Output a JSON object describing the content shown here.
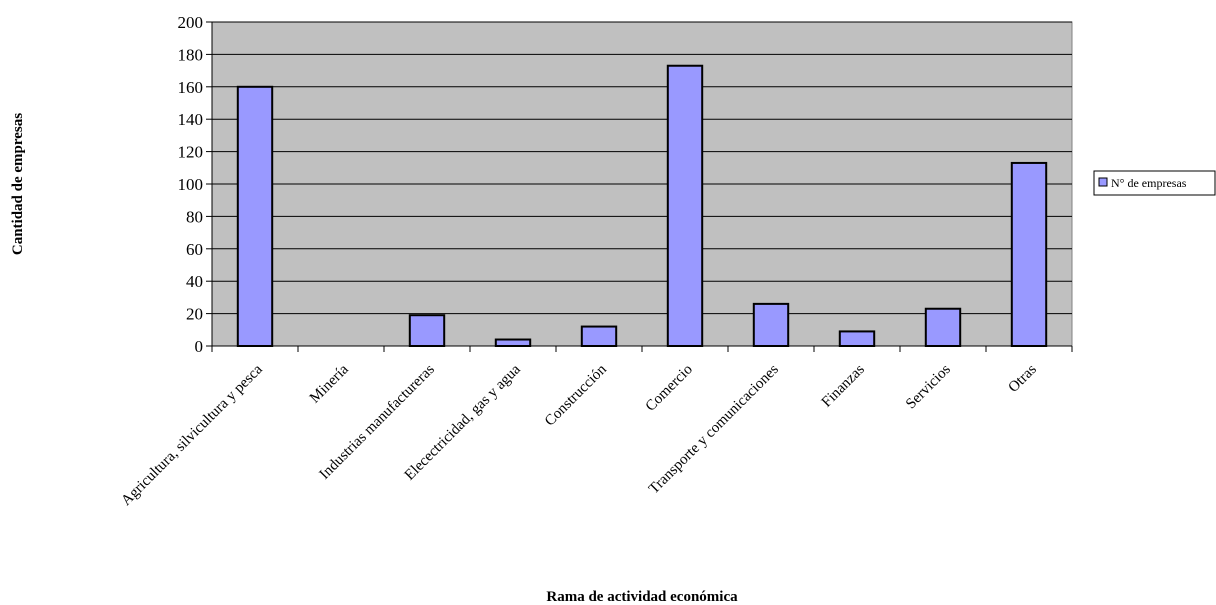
{
  "chart_data": {
    "type": "bar",
    "title": "",
    "xlabel": "Rama de actividad económica",
    "ylabel": "Cantidad de empresas",
    "ylim": [
      0,
      200
    ],
    "ytick_step": 20,
    "grid": true,
    "legend_position": "right",
    "categories": [
      "Agricultura, silvicultura y pesca",
      "Minería",
      "Industrias manufactureras",
      "Elecectricidad, gas y agua",
      "Construcción",
      "Comercio",
      "Transporte y comunicaciones",
      "Finanzas",
      "Servicios",
      "Otras"
    ],
    "series": [
      {
        "name": "N° de empresas",
        "values": [
          160,
          0,
          19,
          4,
          12,
          173,
          26,
          9,
          23,
          113
        ]
      }
    ],
    "colors": {
      "bar": "#9999ff",
      "plot_background": "#c0c0c0",
      "edge": "#000000"
    }
  }
}
